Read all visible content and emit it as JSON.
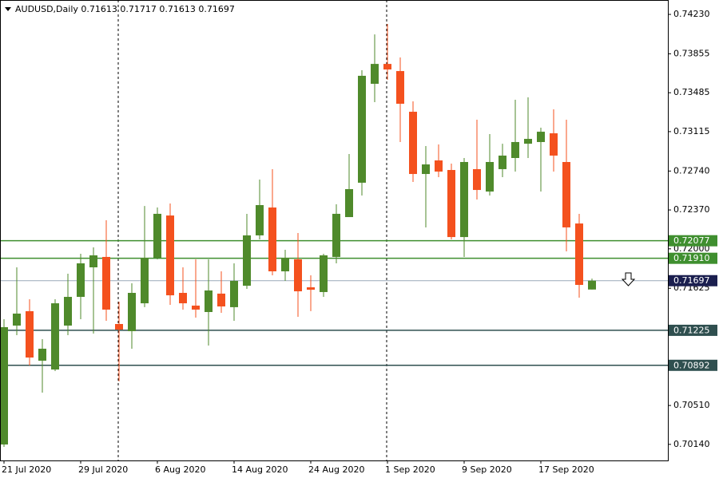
{
  "chart_data": {
    "type": "candlestick",
    "title": "AUDUSD,Daily  0.71613 0.71717 0.71613 0.71697",
    "categories": [
      "21 Jul 2020",
      null,
      null,
      null,
      null,
      null,
      "29 Jul 2020",
      null,
      null,
      null,
      null,
      null,
      "6 Aug 2020",
      null,
      null,
      null,
      null,
      null,
      "14 Aug 2020",
      null,
      null,
      null,
      null,
      null,
      "24 Aug 2020",
      null,
      null,
      null,
      null,
      null,
      "1 Sep 2020",
      null,
      null,
      null,
      null,
      null,
      "9 Sep 2020",
      null,
      null,
      null,
      null,
      null,
      "17 Sep 2020",
      null,
      null,
      null,
      null
    ],
    "open": [
      0.70139,
      0.7127,
      0.71407,
      0.70936,
      0.70852,
      0.7127,
      0.71543,
      0.71824,
      0.71923,
      0.71285,
      0.71217,
      0.71482,
      0.71915,
      0.72317,
      0.71581,
      0.7146,
      0.71399,
      0.71574,
      0.71445,
      0.71649,
      0.72128,
      0.72393,
      0.71786,
      0.719,
      0.71634,
      0.71589,
      0.71923,
      0.72302,
      0.72629,
      0.7357,
      0.73759,
      0.73691,
      0.73304,
      0.72712,
      0.72841,
      0.7275,
      0.72112,
      0.72758,
      0.72545,
      0.72758,
      0.72864,
      0.73,
      0.73016,
      0.73099,
      0.72826,
      0.72241,
      0.71613
    ],
    "high": [
      0.71331,
      0.71824,
      0.7152,
      0.71141,
      0.7152,
      0.71763,
      0.71953,
      0.72014,
      0.72272,
      0.71498,
      0.71672,
      0.72408,
      0.72393,
      0.72431,
      0.71824,
      0.719,
      0.719,
      0.71786,
      0.71862,
      0.72333,
      0.72659,
      0.72758,
      0.71991,
      0.7215,
      0.71748,
      0.71953,
      0.72424,
      0.72902,
      0.73699,
      0.7404,
      0.74139,
      0.7382,
      0.73403,
      0.72978,
      0.72993,
      0.72811,
      0.72864,
      0.73228,
      0.73092,
      0.73,
      0.73418,
      0.73441,
      0.73152,
      0.73327,
      0.73228,
      0.72333,
      0.71717
    ],
    "low": [
      0.70116,
      0.71179,
      0.7089,
      0.70632,
      0.70837,
      0.71179,
      0.71331,
      0.71194,
      0.71315,
      0.70739,
      0.7105,
      0.71445,
      0.719,
      0.71467,
      0.71422,
      0.71346,
      0.7108,
      0.71391,
      0.71315,
      0.71619,
      0.7209,
      0.71748,
      0.71695,
      0.71353,
      0.71407,
      0.71543,
      0.71862,
      0.72302,
      0.72507,
      0.73395,
      0.73608,
      0.73016,
      0.72636,
      0.72204,
      0.72682,
      0.7209,
      0.71923,
      0.72469,
      0.72507,
      0.72682,
      0.72735,
      0.72864,
      0.72545,
      0.72735,
      0.71976,
      0.71536,
      0.71613
    ],
    "close": [
      0.71255,
      0.71384,
      0.70966,
      0.7105,
      0.71482,
      0.71543,
      0.71862,
      0.71938,
      0.71422,
      0.71232,
      0.71581,
      0.71915,
      0.72333,
      0.71558,
      0.71482,
      0.71422,
      0.71604,
      0.71452,
      0.71695,
      0.72128,
      0.72416,
      0.71786,
      0.71915,
      0.71596,
      0.71611,
      0.71938,
      0.72333,
      0.72568,
      0.73646,
      0.73759,
      0.73706,
      0.7338,
      0.72712,
      0.72803,
      0.72735,
      0.72112,
      0.72826,
      0.7256,
      0.72826,
      0.72887,
      0.73016,
      0.73046,
      0.73114,
      0.72887,
      0.72204,
      0.71657,
      0.71697
    ],
    "up_color": "#4f8a2b",
    "down_color": "#f4511e",
    "ylim": [
      0.69987,
      0.74367
    ],
    "yticks": [
      {
        "value": 0.7423,
        "label": "0.74230"
      },
      {
        "value": 0.73855,
        "label": "0.73855"
      },
      {
        "value": 0.73485,
        "label": "0.73485"
      },
      {
        "value": 0.73115,
        "label": "0.73115"
      },
      {
        "value": 0.7274,
        "label": "0.72740"
      },
      {
        "value": 0.7237,
        "label": "0.72370"
      },
      {
        "value": 0.72,
        "label": "0.72000"
      },
      {
        "value": 0.71625,
        "label": "0.71625"
      },
      {
        "value": 0.7051,
        "label": "0.70510"
      },
      {
        "value": 0.7014,
        "label": "0.70140"
      }
    ],
    "levels": [
      {
        "value": 0.72077,
        "label": "0.72077",
        "color": "#3f8f2f"
      },
      {
        "value": 0.7191,
        "label": "0.71910",
        "color": "#3f8f2f"
      },
      {
        "value": 0.71697,
        "label": "0.71697",
        "color": "#1b1f4f"
      },
      {
        "value": 0.71225,
        "label": "0.71225",
        "color": "#2f4f4f"
      },
      {
        "value": 0.70892,
        "label": "0.70892",
        "color": "#2f4f4f"
      }
    ]
  }
}
